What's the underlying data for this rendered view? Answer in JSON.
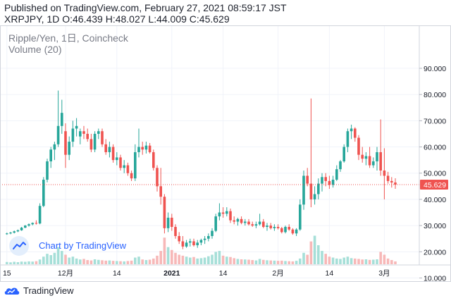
{
  "header": {
    "published": "Published on TradingView.com, February 27, 2021 08:59:17 JST",
    "ohlc": "XRPJPY, 1D O:46.439 H:48.027 L:44.009 C:45.629"
  },
  "legend": {
    "symbol": "Ripple/Yen, 1日, Coincheck",
    "volume": "Volume (20)"
  },
  "watermark": "Chart by TradingView",
  "footer_brand": "TradingView",
  "colors": {
    "up": "#26a69a",
    "down": "#ef5350",
    "up_vol": "#a6dfd8",
    "down_vol": "#f7b8b8",
    "last_price_bg": "#ef5350",
    "brand_blue": "#2962ff"
  },
  "icons": [
    "tradingview-cloud-icon"
  ],
  "chart_data": {
    "type": "candlestick",
    "symbol": "XRPJPY",
    "interval": "1D",
    "y_axis": {
      "ticks": [
        "10.000",
        "20.000",
        "30.000",
        "40.000",
        "50.000",
        "60.000",
        "70.000",
        "80.000",
        "90.000"
      ],
      "tick_values": [
        10,
        20,
        30,
        40,
        50,
        60,
        70,
        80,
        90
      ],
      "ylim": [
        3,
        95
      ]
    },
    "x_axis": {
      "ticks": [
        "15",
        "12月",
        "14",
        "2021",
        "14",
        "2月",
        "14",
        "3月"
      ],
      "tick_bar_index": [
        0,
        16,
        30,
        45,
        59,
        74,
        88,
        103
      ]
    },
    "last_price": {
      "label": "45.629",
      "value": 45.629
    },
    "ohlc": [
      [
        26.8,
        27.3,
        26.5,
        27.0
      ],
      [
        27.0,
        27.6,
        26.7,
        27.3
      ],
      [
        27.3,
        28.1,
        27.0,
        27.8
      ],
      [
        27.8,
        28.5,
        27.5,
        28.2
      ],
      [
        28.2,
        29.5,
        28.0,
        29.2
      ],
      [
        29.2,
        30.2,
        29.0,
        30.0
      ],
      [
        30.0,
        30.8,
        29.6,
        30.5
      ],
      [
        30.5,
        31.2,
        30.1,
        31.0
      ],
      [
        31.0,
        32.0,
        30.4,
        30.8
      ],
      [
        30.8,
        38.5,
        30.5,
        37.5
      ],
      [
        37.5,
        48.5,
        37.0,
        47.5
      ],
      [
        47.5,
        55.5,
        46.5,
        54.5
      ],
      [
        54.5,
        60.0,
        52.0,
        59.0
      ],
      [
        59.0,
        62.0,
        55.0,
        61.0
      ],
      [
        61.0,
        81.5,
        60.0,
        68.0
      ],
      [
        68.0,
        78.0,
        65.0,
        73.0
      ],
      [
        66.0,
        69.0,
        52.0,
        57.0
      ],
      [
        57.0,
        64.0,
        55.0,
        62.0
      ],
      [
        62.0,
        70.0,
        60.0,
        67.0
      ],
      [
        67.0,
        71.0,
        64.0,
        68.0
      ],
      [
        64.0,
        67.0,
        61.0,
        66.0
      ],
      [
        66.0,
        68.0,
        63.0,
        65.0
      ],
      [
        65.0,
        67.0,
        62.0,
        63.0
      ],
      [
        63.0,
        65.0,
        58.0,
        59.0
      ],
      [
        59.0,
        66.0,
        58.0,
        65.0
      ],
      [
        65.0,
        67.0,
        63.0,
        66.0
      ],
      [
        66.0,
        67.0,
        60.0,
        61.0
      ],
      [
        61.0,
        63.0,
        57.0,
        58.0
      ],
      [
        58.0,
        62.0,
        56.0,
        60.0
      ],
      [
        60.0,
        61.0,
        54.0,
        55.0
      ],
      [
        55.0,
        58.0,
        53.0,
        56.0
      ],
      [
        56.0,
        57.0,
        51.0,
        52.0
      ],
      [
        52.0,
        55.0,
        50.0,
        53.0
      ],
      [
        53.0,
        54.0,
        49.0,
        50.0
      ],
      [
        50.0,
        51.0,
        47.0,
        48.0
      ],
      [
        48.0,
        61.0,
        47.0,
        58.0
      ],
      [
        58.0,
        67.0,
        56.0,
        60.0
      ],
      [
        60.0,
        62.0,
        57.0,
        59.0
      ],
      [
        59.0,
        62.0,
        57.5,
        60.5
      ],
      [
        60.5,
        61.5,
        57.5,
        58.0
      ],
      [
        58.0,
        59.0,
        51.0,
        52.0
      ],
      [
        52.0,
        53.0,
        43.0,
        45.0
      ],
      [
        45.0,
        52.0,
        38.0,
        41.0
      ],
      [
        41.0,
        42.0,
        27.0,
        29.0
      ],
      [
        29.0,
        35.0,
        27.5,
        33.0
      ],
      [
        33.0,
        34.5,
        28.0,
        29.5
      ],
      [
        29.5,
        30.5,
        25.0,
        26.0
      ],
      [
        26.0,
        27.5,
        23.0,
        24.0
      ],
      [
        24.0,
        26.0,
        21.0,
        22.0
      ],
      [
        22.0,
        24.5,
        21.5,
        23.5
      ],
      [
        23.5,
        25.0,
        22.0,
        24.0
      ],
      [
        24.0,
        25.0,
        22.0,
        22.5
      ],
      [
        22.5,
        24.5,
        21.5,
        23.5
      ],
      [
        23.5,
        25.0,
        22.5,
        24.5
      ],
      [
        24.5,
        26.0,
        23.0,
        25.0
      ],
      [
        25.0,
        27.0,
        24.0,
        26.0
      ],
      [
        26.0,
        29.0,
        25.0,
        28.0
      ],
      [
        28.0,
        34.5,
        27.5,
        33.5
      ],
      [
        33.5,
        38.5,
        32.0,
        35.0
      ],
      [
        35.0,
        37.0,
        33.0,
        34.5
      ],
      [
        34.5,
        37.0,
        33.5,
        35.5
      ],
      [
        35.5,
        36.5,
        31.0,
        32.0
      ],
      [
        32.0,
        33.5,
        30.5,
        31.5
      ],
      [
        31.5,
        33.0,
        30.0,
        32.5
      ],
      [
        32.5,
        33.5,
        30.5,
        31.0
      ],
      [
        31.0,
        32.5,
        30.0,
        31.5
      ],
      [
        31.5,
        32.5,
        30.0,
        30.5
      ],
      [
        30.5,
        31.5,
        29.5,
        30.0
      ],
      [
        30.0,
        31.5,
        29.0,
        30.5
      ],
      [
        30.5,
        34.5,
        30.0,
        31.5
      ],
      [
        31.5,
        32.5,
        29.0,
        29.5
      ],
      [
        29.5,
        31.0,
        28.0,
        30.0
      ],
      [
        30.0,
        31.0,
        28.5,
        29.0
      ],
      [
        29.0,
        30.5,
        28.0,
        29.5
      ],
      [
        29.5,
        30.5,
        28.5,
        29.0
      ],
      [
        29.0,
        29.5,
        27.0,
        27.5
      ],
      [
        27.5,
        30.0,
        27.0,
        29.5
      ],
      [
        29.5,
        30.5,
        28.0,
        28.5
      ],
      [
        28.5,
        29.0,
        26.5,
        27.0
      ],
      [
        27.0,
        29.0,
        26.0,
        28.5
      ],
      [
        28.5,
        40.0,
        28.0,
        38.0
      ],
      [
        38.0,
        51.0,
        36.0,
        49.0
      ],
      [
        49.0,
        52.0,
        45.0,
        46.0
      ],
      [
        46.0,
        78.5,
        37.0,
        40.0
      ],
      [
        40.0,
        45.0,
        38.0,
        42.0
      ],
      [
        42.0,
        48.0,
        40.0,
        46.0
      ],
      [
        46.0,
        50.0,
        43.0,
        48.5
      ],
      [
        48.5,
        50.0,
        45.0,
        47.0
      ],
      [
        47.0,
        49.0,
        44.0,
        45.5
      ],
      [
        45.5,
        49.0,
        44.5,
        47.5
      ],
      [
        47.5,
        53.0,
        47.0,
        51.5
      ],
      [
        51.5,
        55.0,
        50.5,
        54.5
      ],
      [
        54.5,
        61.0,
        54.0,
        60.0
      ],
      [
        60.0,
        67.0,
        58.0,
        66.0
      ],
      [
        66.0,
        68.5,
        63.0,
        67.0
      ],
      [
        67.0,
        67.5,
        62.0,
        63.5
      ],
      [
        63.5,
        64.5,
        55.0,
        57.0
      ],
      [
        57.0,
        60.0,
        54.0,
        55.5
      ],
      [
        55.5,
        58.0,
        53.0,
        56.5
      ],
      [
        56.5,
        60.0,
        52.0,
        53.0
      ],
      [
        53.0,
        56.0,
        52.0,
        54.5
      ],
      [
        54.5,
        60.0,
        51.0,
        58.0
      ],
      [
        58.0,
        70.5,
        49.0,
        51.0
      ],
      [
        51.0,
        59.5,
        40.0,
        49.0
      ],
      [
        49.0,
        50.5,
        46.0,
        47.0
      ],
      [
        47.0,
        48.5,
        44.5,
        46.439
      ],
      [
        46.439,
        48.027,
        44.009,
        45.629
      ]
    ],
    "volume": [
      1.2,
      1.0,
      1.3,
      1.1,
      1.4,
      1.3,
      1.5,
      1.4,
      1.6,
      2.5,
      4.0,
      5.5,
      4.8,
      6.0,
      9.0,
      7.0,
      5.0,
      3.5,
      4.0,
      3.0,
      2.5,
      2.8,
      2.2,
      2.0,
      2.6,
      2.3,
      2.1,
      1.9,
      2.0,
      1.8,
      1.7,
      1.6,
      1.5,
      1.7,
      1.9,
      3.5,
      4.0,
      2.5,
      2.2,
      2.4,
      3.0,
      4.5,
      7.0,
      14.0,
      9.0,
      7.5,
      6.0,
      5.0,
      4.5,
      4.0,
      3.5,
      3.8,
      3.0,
      3.2,
      3.5,
      4.2,
      5.0,
      6.5,
      7.0,
      4.5,
      4.0,
      3.8,
      3.2,
      2.8,
      2.6,
      2.5,
      2.4,
      2.2,
      2.0,
      2.8,
      2.3,
      2.1,
      2.0,
      1.9,
      1.8,
      1.9,
      1.7,
      1.6,
      1.5,
      1.8,
      3.0,
      6.0,
      5.0,
      12.0,
      15.0,
      10.0,
      7.0,
      5.5,
      4.0,
      3.5,
      3.0,
      2.8,
      3.5,
      4.0,
      3.2,
      3.0,
      2.8,
      2.5,
      2.6,
      2.3,
      2.4,
      2.6,
      6.5,
      5.0,
      3.0,
      2.2,
      1.5
    ]
  }
}
